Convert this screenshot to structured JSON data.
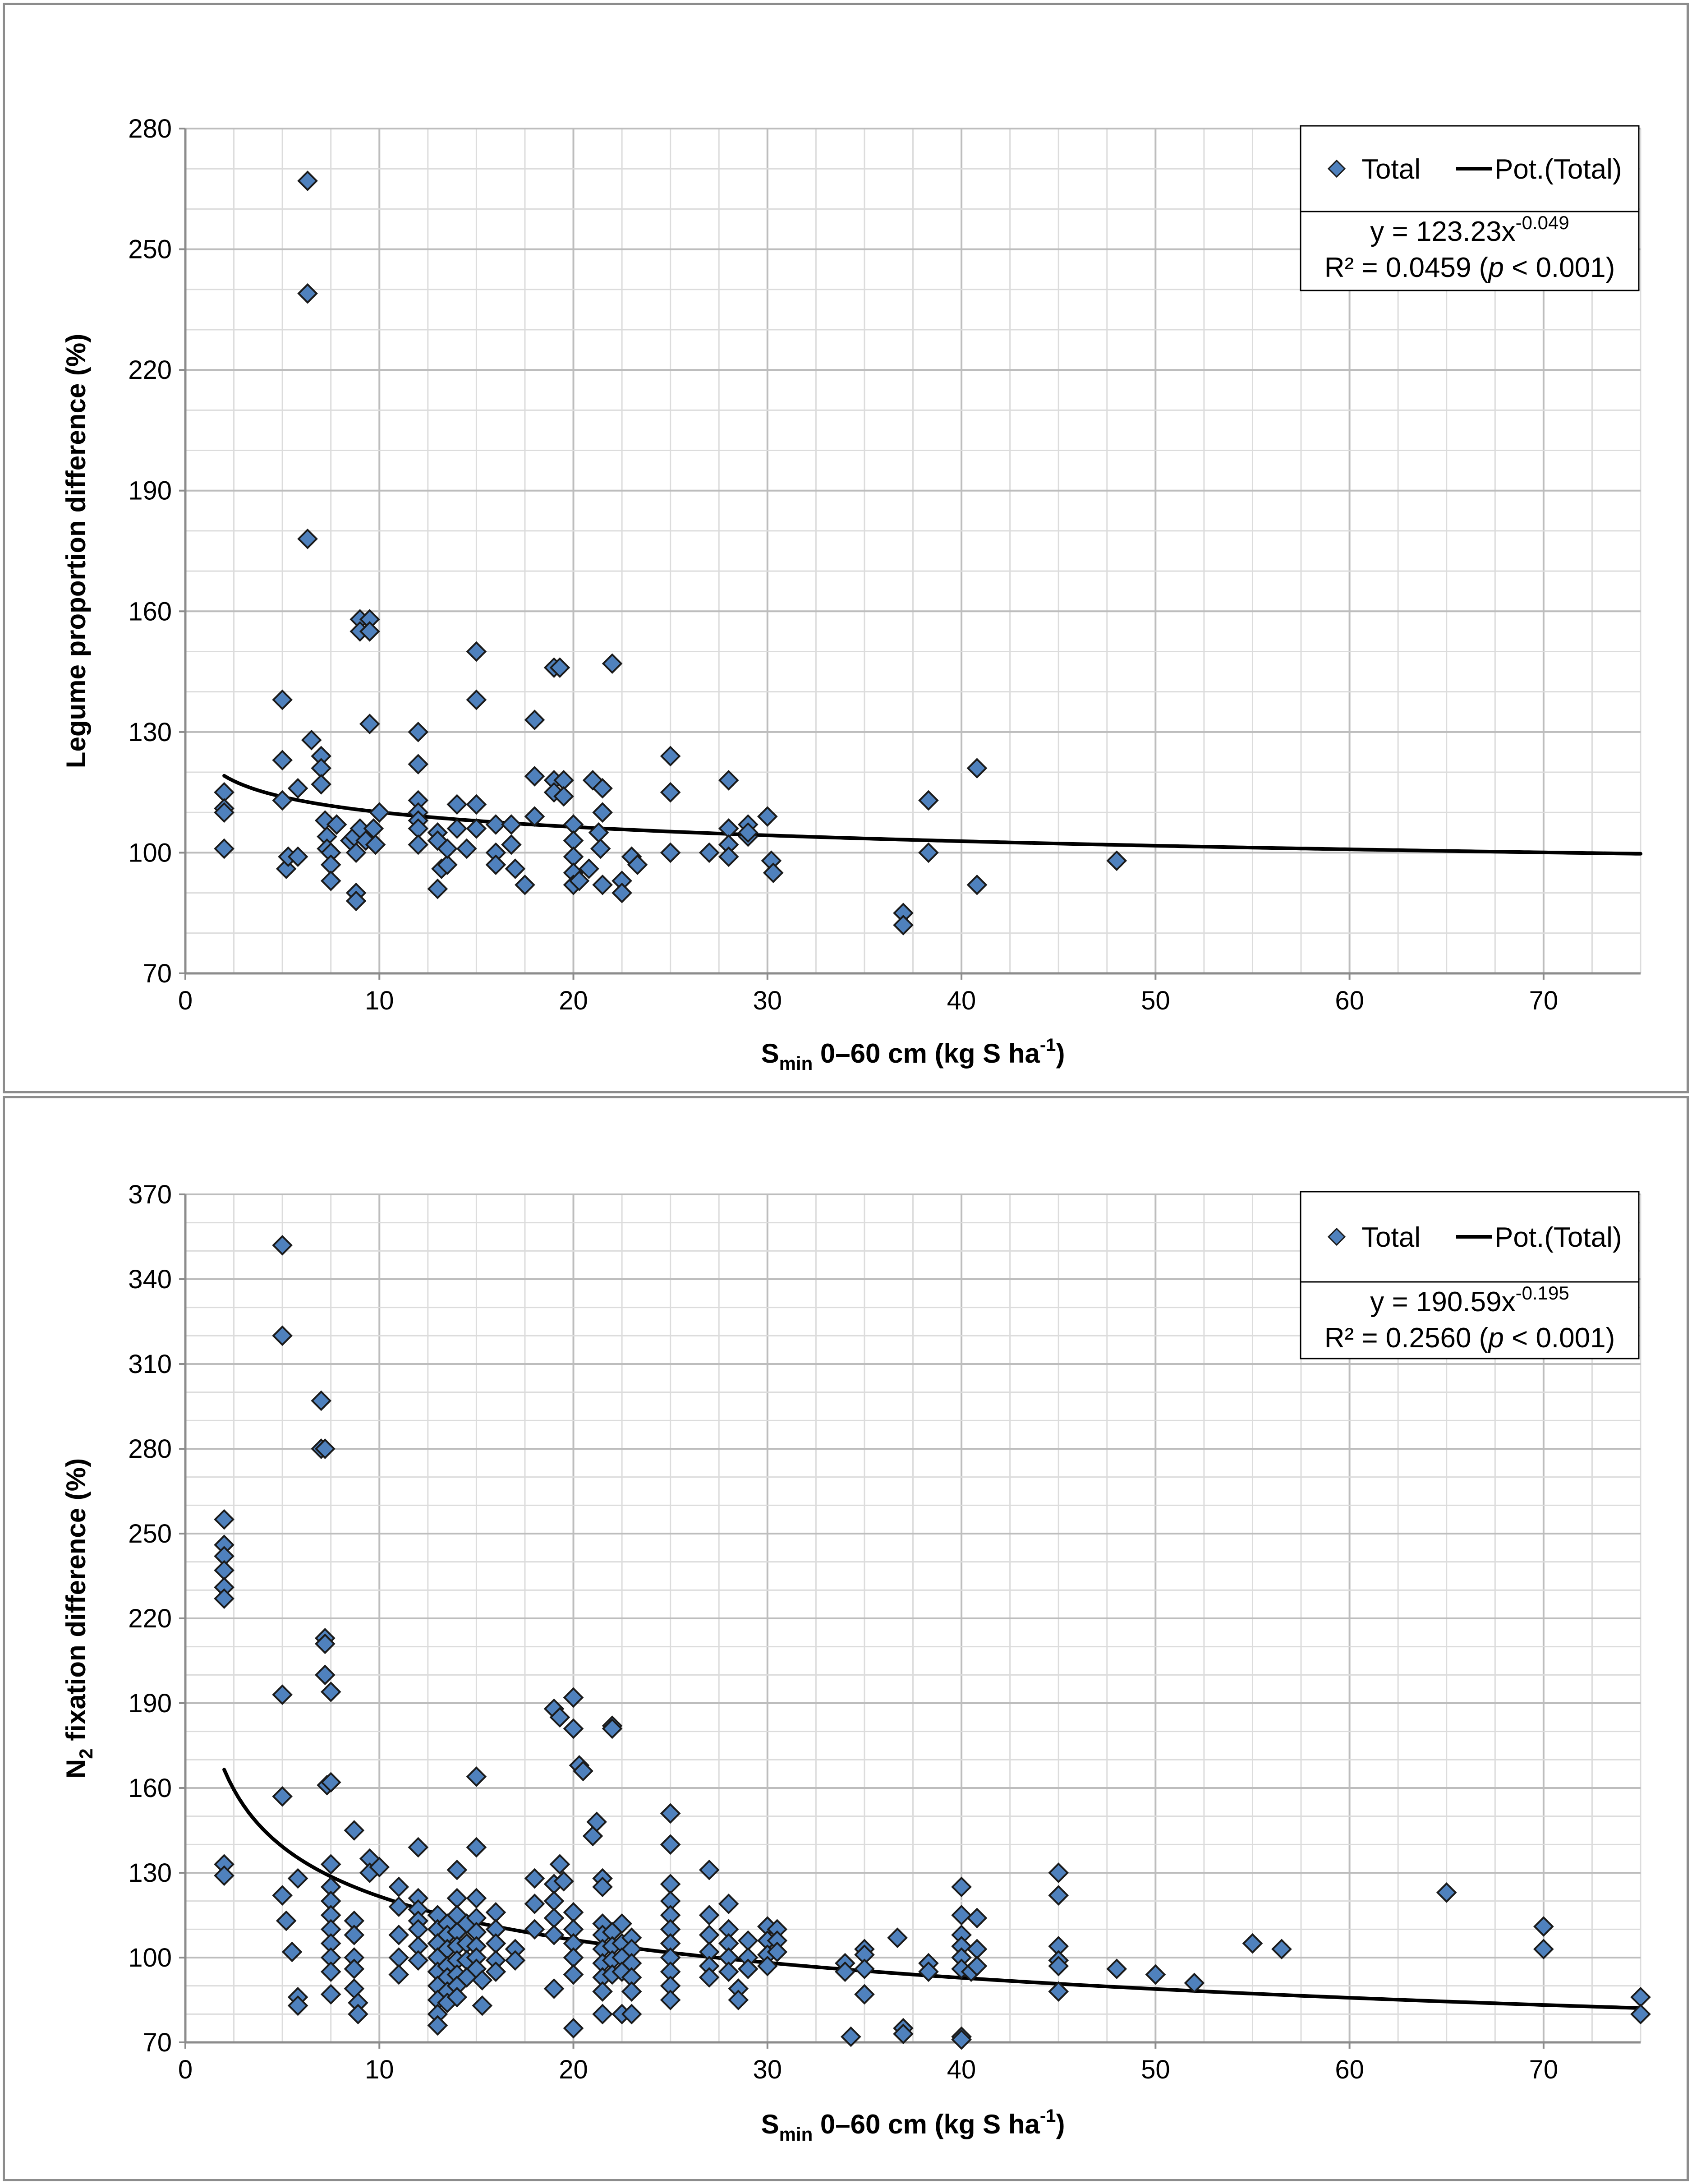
{
  "chart_data": [
    {
      "type": "scatter",
      "name": "legume-proportion",
      "ylabel": "Legume proportion difference (%)",
      "xlabel": {
        "main": "S",
        "sub": "min",
        "rest": " 0–60 cm (kg S ha",
        "sup": "-1",
        "close": ")"
      },
      "xlim": [
        0,
        75
      ],
      "ylim": [
        70,
        280
      ],
      "xticks": [
        0,
        10,
        20,
        30,
        40,
        50,
        60,
        70
      ],
      "yticks": [
        70,
        100,
        130,
        160,
        190,
        220,
        250,
        280
      ],
      "grid": true,
      "legend": {
        "position": "top-right",
        "series_label": "Total",
        "fit_label": "Pot.(Total)"
      },
      "equation": {
        "prefix": "y = 123.23x",
        "exponent": "-0.049",
        "r2_prefix": "R² = 0.0459 (",
        "p_symbol": "p",
        "r2_suffix": " < 0.001)"
      },
      "fit": {
        "a": 123.23,
        "b": -0.049,
        "x_from": 2,
        "x_to": 75
      },
      "marker_color": "#4f81bd",
      "points": [
        [
          2,
          115
        ],
        [
          2,
          111
        ],
        [
          2,
          110
        ],
        [
          2,
          101
        ],
        [
          5,
          138
        ],
        [
          5,
          123
        ],
        [
          5,
          113
        ],
        [
          5.2,
          96
        ],
        [
          5.3,
          99
        ],
        [
          5.8,
          116
        ],
        [
          5.8,
          99
        ],
        [
          6.3,
          267
        ],
        [
          6.3,
          239
        ],
        [
          6.3,
          178
        ],
        [
          6.5,
          128
        ],
        [
          7,
          124
        ],
        [
          7,
          121
        ],
        [
          7,
          117
        ],
        [
          7.2,
          108
        ],
        [
          7.3,
          104
        ],
        [
          7.3,
          101
        ],
        [
          7.5,
          100
        ],
        [
          7.5,
          97
        ],
        [
          7.5,
          93
        ],
        [
          7.8,
          107
        ],
        [
          8.5,
          103
        ],
        [
          8.7,
          104
        ],
        [
          8.8,
          100
        ],
        [
          8.8,
          90
        ],
        [
          8.8,
          88
        ],
        [
          9,
          158
        ],
        [
          9,
          155
        ],
        [
          9,
          106
        ],
        [
          9.3,
          103
        ],
        [
          9.5,
          158
        ],
        [
          9.5,
          155
        ],
        [
          9.5,
          132
        ],
        [
          9.7,
          106
        ],
        [
          9.8,
          102
        ],
        [
          10,
          110
        ],
        [
          12,
          130
        ],
        [
          12,
          122
        ],
        [
          12,
          113
        ],
        [
          12,
          110
        ],
        [
          12,
          108
        ],
        [
          12,
          106
        ],
        [
          12,
          102
        ],
        [
          13,
          105
        ],
        [
          13,
          103
        ],
        [
          13,
          91
        ],
        [
          13.2,
          96
        ],
        [
          13.5,
          97
        ],
        [
          13.5,
          101
        ],
        [
          14,
          112
        ],
        [
          14,
          106
        ],
        [
          14.5,
          101
        ],
        [
          15,
          150
        ],
        [
          15,
          138
        ],
        [
          15,
          112
        ],
        [
          15,
          106
        ],
        [
          16,
          107
        ],
        [
          16,
          100
        ],
        [
          16,
          97
        ],
        [
          16.8,
          107
        ],
        [
          16.8,
          102
        ],
        [
          17,
          96
        ],
        [
          17.5,
          92
        ],
        [
          18,
          133
        ],
        [
          18,
          119
        ],
        [
          18,
          109
        ],
        [
          19,
          146
        ],
        [
          19,
          118
        ],
        [
          19,
          115
        ],
        [
          19.3,
          146
        ],
        [
          19.5,
          118
        ],
        [
          19.5,
          114
        ],
        [
          20,
          107
        ],
        [
          20,
          103
        ],
        [
          20,
          99
        ],
        [
          20,
          95
        ],
        [
          20,
          92
        ],
        [
          20.3,
          93
        ],
        [
          20.8,
          96
        ],
        [
          21,
          118
        ],
        [
          21.3,
          105
        ],
        [
          21.4,
          101
        ],
        [
          21.5,
          116
        ],
        [
          21.5,
          110
        ],
        [
          21.5,
          92
        ],
        [
          22,
          147
        ],
        [
          22.5,
          93
        ],
        [
          22.5,
          90
        ],
        [
          23,
          99
        ],
        [
          23.3,
          97
        ],
        [
          25,
          124
        ],
        [
          25,
          115
        ],
        [
          25,
          100
        ],
        [
          27,
          100
        ],
        [
          28,
          118
        ],
        [
          28,
          106
        ],
        [
          28,
          102
        ],
        [
          28,
          99
        ],
        [
          29,
          107
        ],
        [
          29,
          104
        ],
        [
          29,
          105
        ],
        [
          30,
          109
        ],
        [
          30.2,
          98
        ],
        [
          30.3,
          95
        ],
        [
          37,
          85
        ],
        [
          37,
          82
        ],
        [
          38.3,
          113
        ],
        [
          38.3,
          100
        ],
        [
          40.8,
          121
        ],
        [
          40.8,
          92
        ],
        [
          48,
          98
        ]
      ]
    },
    {
      "type": "scatter",
      "name": "n2-fixation",
      "ylabel": {
        "main": "N",
        "sub": "2",
        "rest": " fixation difference (%)"
      },
      "xlabel": {
        "main": "S",
        "sub": "min",
        "rest": " 0–60 cm (kg S ha",
        "sup": "-1",
        "close": ")"
      },
      "xlim": [
        0,
        75
      ],
      "ylim": [
        70,
        370
      ],
      "xticks": [
        0,
        10,
        20,
        30,
        40,
        50,
        60,
        70
      ],
      "yticks": [
        70,
        100,
        130,
        160,
        190,
        220,
        250,
        280,
        310,
        340,
        370
      ],
      "grid": true,
      "legend": {
        "position": "top-right",
        "series_label": "Total",
        "fit_label": "Pot.(Total)"
      },
      "equation": {
        "prefix": "y = 190.59x",
        "exponent": "-0.195",
        "r2_prefix": "R² = 0.2560 (",
        "p_symbol": "p",
        "r2_suffix": " < 0.001)"
      },
      "fit": {
        "a": 190.59,
        "b": -0.195,
        "x_from": 2,
        "x_to": 75
      },
      "marker_color": "#4f81bd",
      "points": [
        [
          2,
          255
        ],
        [
          2,
          246
        ],
        [
          2,
          242
        ],
        [
          2,
          237
        ],
        [
          2,
          231
        ],
        [
          2,
          227
        ],
        [
          2,
          133
        ],
        [
          2,
          129
        ],
        [
          5,
          352
        ],
        [
          5,
          320
        ],
        [
          5,
          193
        ],
        [
          5,
          157
        ],
        [
          5,
          122
        ],
        [
          5.2,
          113
        ],
        [
          5.5,
          102
        ],
        [
          5.8,
          128
        ],
        [
          5.8,
          86
        ],
        [
          5.8,
          83
        ],
        [
          7,
          297
        ],
        [
          7,
          280
        ],
        [
          7.2,
          280
        ],
        [
          7.2,
          213
        ],
        [
          7.2,
          211
        ],
        [
          7.2,
          200
        ],
        [
          7.3,
          161
        ],
        [
          7.5,
          162
        ],
        [
          7.5,
          194
        ],
        [
          7.5,
          133
        ],
        [
          7.5,
          125
        ],
        [
          7.5,
          120
        ],
        [
          7.5,
          115
        ],
        [
          7.5,
          110
        ],
        [
          7.5,
          105
        ],
        [
          7.5,
          100
        ],
        [
          7.5,
          95
        ],
        [
          7.5,
          87
        ],
        [
          8.7,
          145
        ],
        [
          8.7,
          113
        ],
        [
          8.7,
          108
        ],
        [
          8.7,
          100
        ],
        [
          8.7,
          96
        ],
        [
          8.7,
          89
        ],
        [
          8.9,
          84
        ],
        [
          8.9,
          80
        ],
        [
          9.5,
          135
        ],
        [
          9.5,
          130
        ],
        [
          10,
          132
        ],
        [
          11,
          125
        ],
        [
          11,
          118
        ],
        [
          11,
          108
        ],
        [
          11,
          100
        ],
        [
          11,
          94
        ],
        [
          12,
          139
        ],
        [
          12,
          121
        ],
        [
          12,
          117
        ],
        [
          12,
          113
        ],
        [
          12,
          110
        ],
        [
          12,
          104
        ],
        [
          12,
          99
        ],
        [
          13,
          115
        ],
        [
          13,
          110
        ],
        [
          13,
          105
        ],
        [
          13,
          100
        ],
        [
          13,
          95
        ],
        [
          13,
          90
        ],
        [
          13,
          85
        ],
        [
          13,
          80
        ],
        [
          13,
          76
        ],
        [
          13.5,
          112
        ],
        [
          13.5,
          108
        ],
        [
          13.5,
          103
        ],
        [
          13.5,
          97
        ],
        [
          13.5,
          93
        ],
        [
          13.5,
          88
        ],
        [
          13.5,
          84
        ],
        [
          14,
          131
        ],
        [
          14,
          121
        ],
        [
          14,
          115
        ],
        [
          14,
          109
        ],
        [
          14,
          104
        ],
        [
          14,
          99
        ],
        [
          14,
          94
        ],
        [
          14,
          90
        ],
        [
          14,
          86
        ],
        [
          14.5,
          112
        ],
        [
          14.5,
          105
        ],
        [
          14.5,
          99
        ],
        [
          14.5,
          93
        ],
        [
          15,
          164
        ],
        [
          15,
          139
        ],
        [
          15,
          121
        ],
        [
          15,
          114
        ],
        [
          15,
          109
        ],
        [
          15,
          104
        ],
        [
          15,
          100
        ],
        [
          15,
          96
        ],
        [
          15.3,
          83
        ],
        [
          15.3,
          92
        ],
        [
          16,
          116
        ],
        [
          16,
          110
        ],
        [
          16,
          105
        ],
        [
          16,
          99
        ],
        [
          16,
          95
        ],
        [
          17,
          103
        ],
        [
          17,
          99
        ],
        [
          18,
          128
        ],
        [
          18,
          119
        ],
        [
          18,
          110
        ],
        [
          19,
          188
        ],
        [
          19,
          126
        ],
        [
          19,
          120
        ],
        [
          19,
          114
        ],
        [
          19,
          108
        ],
        [
          19,
          89
        ],
        [
          19.3,
          185
        ],
        [
          19.3,
          133
        ],
        [
          19.5,
          127
        ],
        [
          20,
          192
        ],
        [
          20,
          181
        ],
        [
          20,
          116
        ],
        [
          20,
          110
        ],
        [
          20,
          105
        ],
        [
          20,
          100
        ],
        [
          20,
          94
        ],
        [
          20,
          75
        ],
        [
          20.3,
          168
        ],
        [
          20.5,
          166
        ],
        [
          21,
          143
        ],
        [
          21.2,
          148
        ],
        [
          21.5,
          128
        ],
        [
          21.5,
          125
        ],
        [
          21.5,
          112
        ],
        [
          21.5,
          108
        ],
        [
          21.5,
          103
        ],
        [
          21.5,
          98
        ],
        [
          21.5,
          93
        ],
        [
          21.5,
          88
        ],
        [
          21.5,
          80
        ],
        [
          22,
          182
        ],
        [
          22,
          181
        ],
        [
          22,
          109
        ],
        [
          22,
          104
        ],
        [
          22,
          99
        ],
        [
          22,
          94
        ],
        [
          22.5,
          112
        ],
        [
          22.5,
          105
        ],
        [
          22.5,
          100
        ],
        [
          22.5,
          95
        ],
        [
          22.5,
          80
        ],
        [
          23,
          107
        ],
        [
          23,
          103
        ],
        [
          23,
          98
        ],
        [
          23,
          93
        ],
        [
          23,
          88
        ],
        [
          23,
          80
        ],
        [
          25,
          151
        ],
        [
          25,
          140
        ],
        [
          25,
          126
        ],
        [
          25,
          120
        ],
        [
          25,
          115
        ],
        [
          25,
          110
        ],
        [
          25,
          105
        ],
        [
          25,
          100
        ],
        [
          25,
          95
        ],
        [
          25,
          90
        ],
        [
          25,
          85
        ],
        [
          27,
          131
        ],
        [
          27,
          115
        ],
        [
          27,
          108
        ],
        [
          27,
          102
        ],
        [
          27,
          97
        ],
        [
          27,
          93
        ],
        [
          28,
          119
        ],
        [
          28,
          110
        ],
        [
          28,
          105
        ],
        [
          28,
          100
        ],
        [
          28,
          95
        ],
        [
          28.5,
          89
        ],
        [
          28.5,
          85
        ],
        [
          29,
          106
        ],
        [
          29,
          100
        ],
        [
          29,
          96
        ],
        [
          30,
          111
        ],
        [
          30,
          106
        ],
        [
          30,
          101
        ],
        [
          30,
          97
        ],
        [
          30.5,
          110
        ],
        [
          30.5,
          106
        ],
        [
          30.5,
          102
        ],
        [
          34,
          98
        ],
        [
          34,
          95
        ],
        [
          34.3,
          72
        ],
        [
          35,
          103
        ],
        [
          35,
          101
        ],
        [
          35,
          96
        ],
        [
          35,
          87
        ],
        [
          36.7,
          107
        ],
        [
          37,
          75
        ],
        [
          37,
          73
        ],
        [
          38.3,
          98
        ],
        [
          38.3,
          95
        ],
        [
          40,
          125
        ],
        [
          40,
          115
        ],
        [
          40,
          108
        ],
        [
          40,
          104
        ],
        [
          40,
          100
        ],
        [
          40,
          96
        ],
        [
          40,
          72
        ],
        [
          40,
          71
        ],
        [
          40.5,
          95
        ],
        [
          40.8,
          114
        ],
        [
          40.8,
          103
        ],
        [
          40.8,
          97
        ],
        [
          45,
          130
        ],
        [
          45,
          122
        ],
        [
          45,
          104
        ],
        [
          45,
          99
        ],
        [
          45,
          97
        ],
        [
          45,
          88
        ],
        [
          48,
          96
        ],
        [
          50,
          94
        ],
        [
          52,
          91
        ],
        [
          55,
          105
        ],
        [
          56.5,
          103
        ],
        [
          65,
          123
        ],
        [
          70,
          111
        ],
        [
          70,
          103
        ],
        [
          75,
          86
        ],
        [
          75,
          80
        ]
      ]
    }
  ]
}
